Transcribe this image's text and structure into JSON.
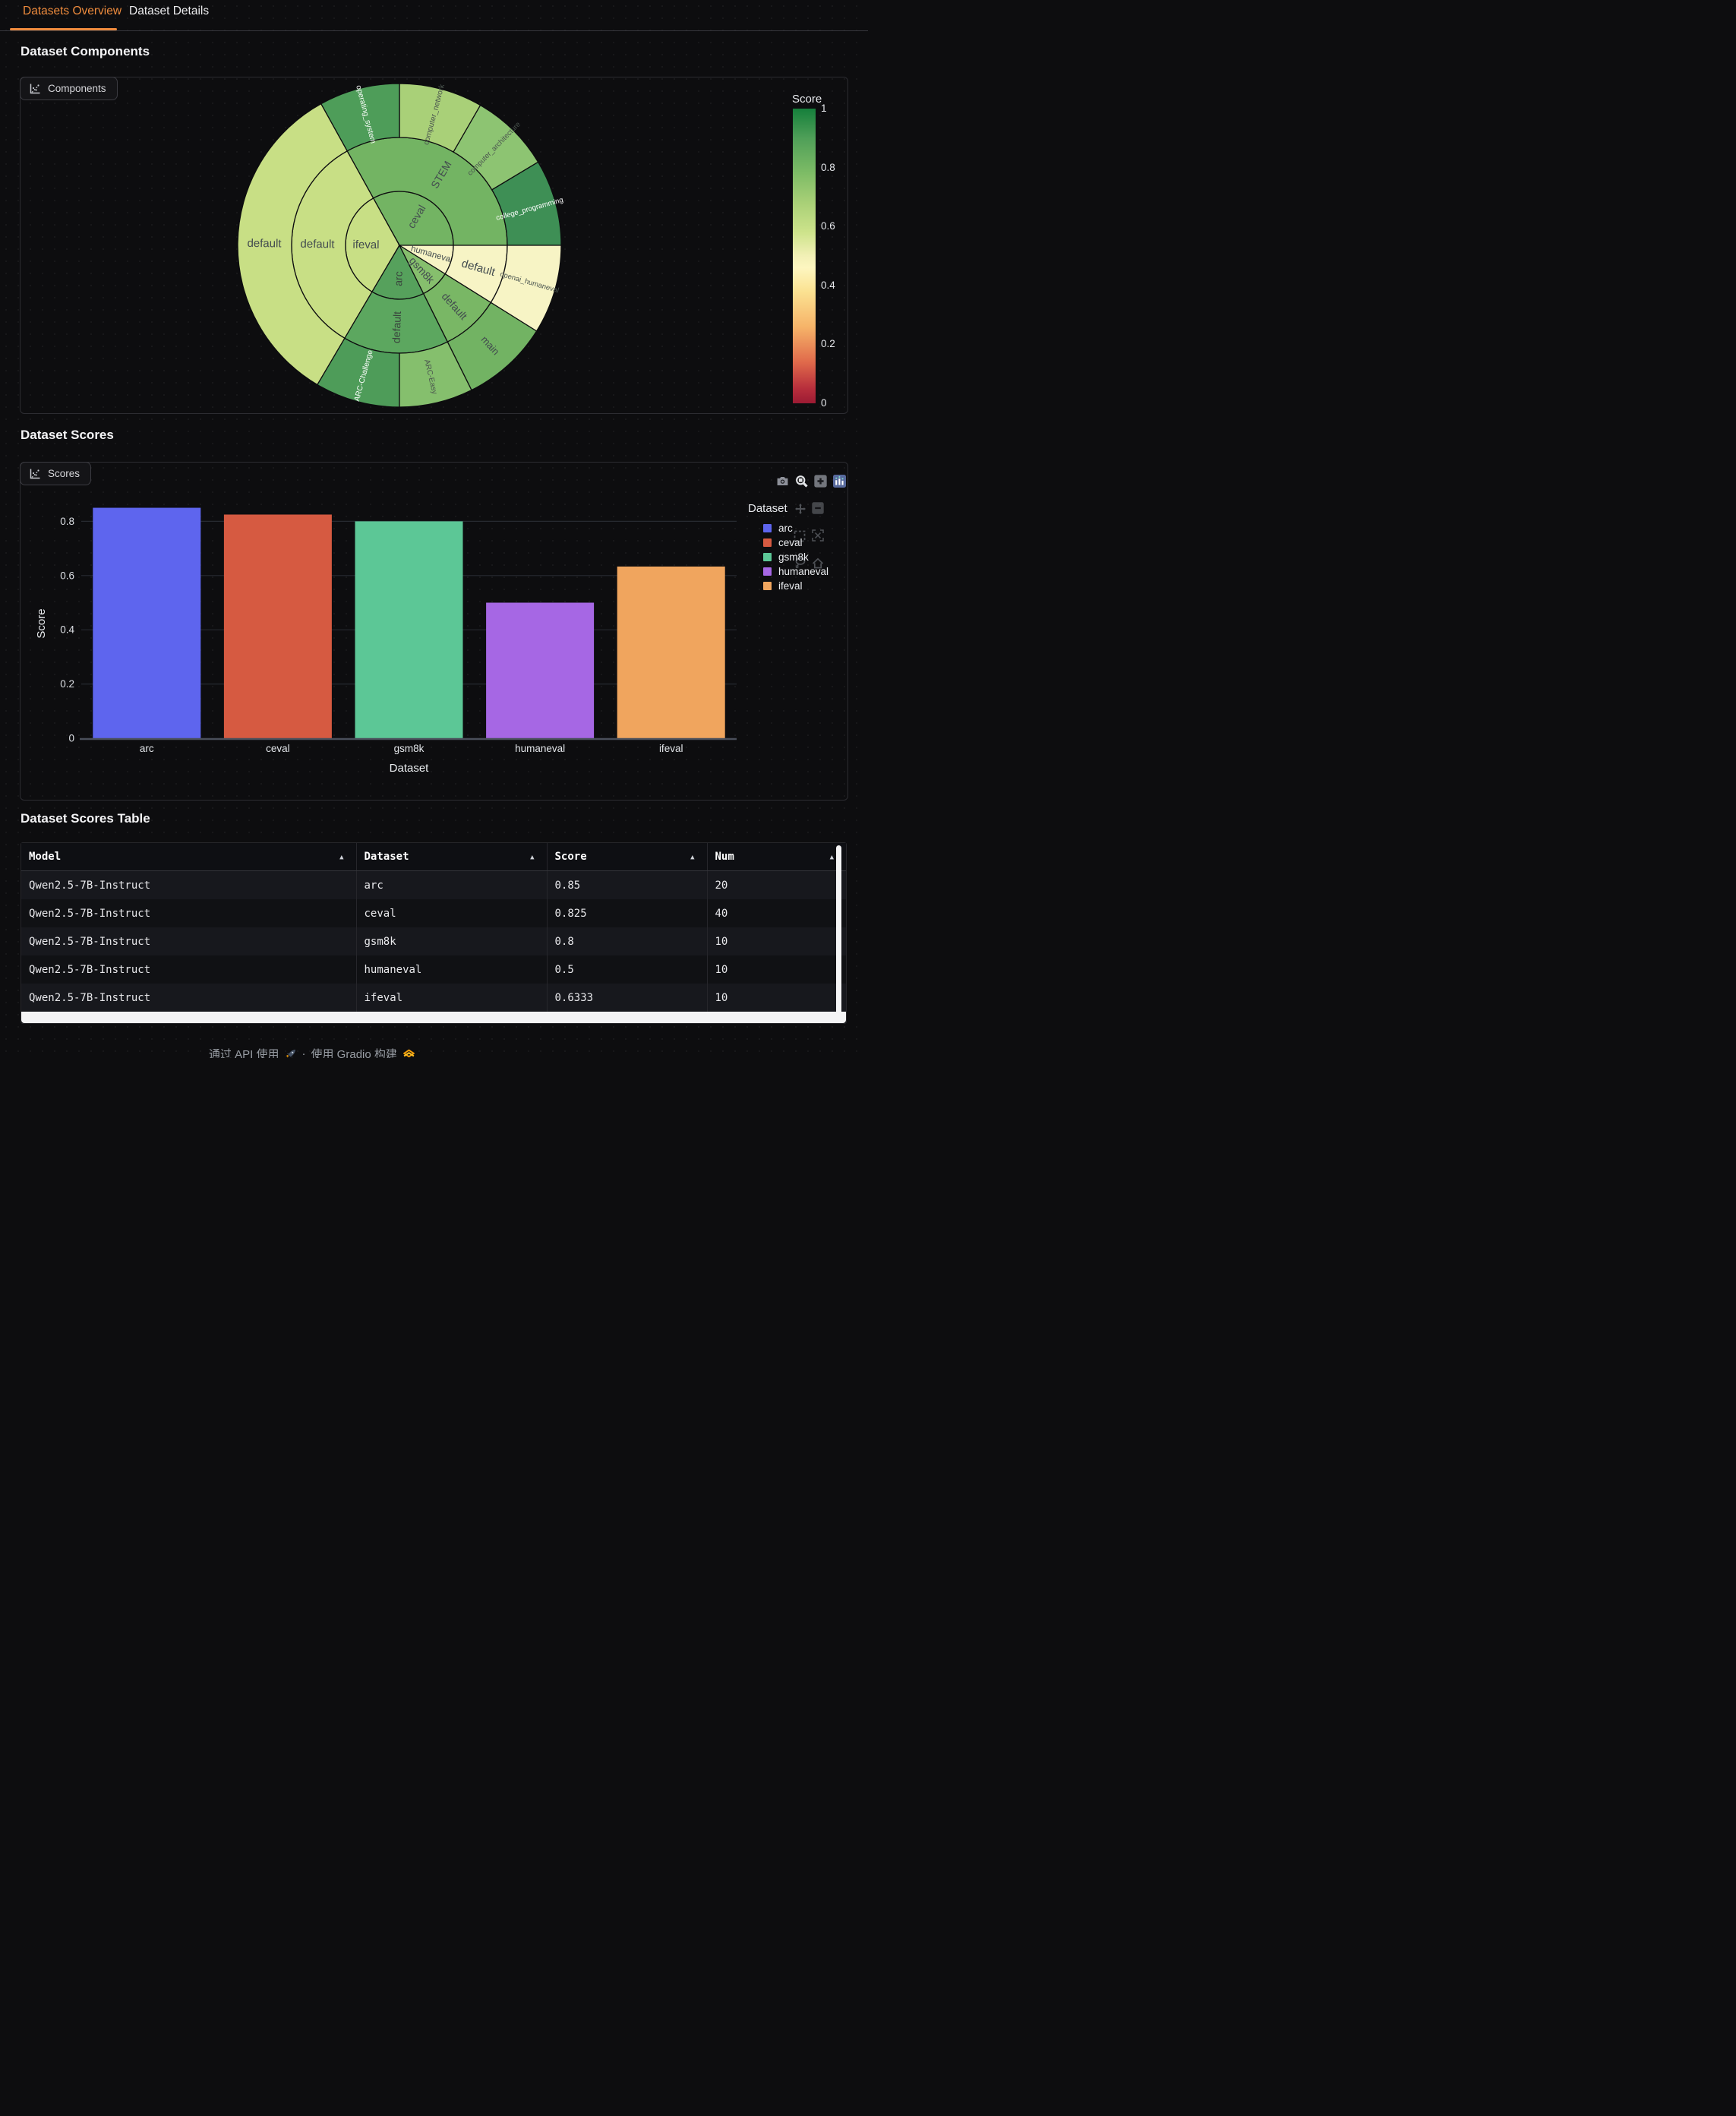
{
  "tabs": [
    {
      "label": "Datasets Overview",
      "active": true
    },
    {
      "label": "Dataset Details",
      "active": false
    }
  ],
  "sections": {
    "components": {
      "heading": "Dataset Components",
      "tab_label": "Components"
    },
    "scores": {
      "heading": "Dataset Scores",
      "tab_label": "Scores"
    },
    "table": {
      "heading": "Dataset Scores Table"
    }
  },
  "chart_data": [
    {
      "type": "sunburst",
      "description": "Dataset components sunburst, colored by Score (RdYlGn, 0=red, 1=green)",
      "colorbar": {
        "title": "Score",
        "ticks": [
          "1",
          "0.8",
          "0.6",
          "0.4",
          "0.2",
          "0"
        ],
        "range": [
          0,
          1
        ],
        "colormap": "RdYlGn"
      },
      "rings": [
        "dataset",
        "subset",
        "split"
      ],
      "segments": [
        {
          "label": "ceval",
          "ring": 0,
          "a0": 0,
          "a1": 119,
          "color": "#73b463",
          "text": "#434c4f",
          "fs": 14
        },
        {
          "label": "ifeval",
          "ring": 0,
          "a0": 119,
          "a1": 239.5,
          "color": "#c8df85",
          "text": "#434c4f",
          "fs": 15
        },
        {
          "label": "arc",
          "ring": 0,
          "a0": 239.5,
          "a1": 296.5,
          "color": "#56a15c",
          "text": "#39443d",
          "fs": 14
        },
        {
          "label": "gsm8k",
          "ring": 0,
          "a0": 296.5,
          "a1": 328,
          "color": "#86bf6d",
          "text": "#434c4f",
          "fs": 14
        },
        {
          "label": "humaneval",
          "ring": 0,
          "a0": 328,
          "a1": 360,
          "color": "#f7f4c5",
          "text": "#434c4f",
          "fs": 11.5
        },
        {
          "label": "STEM",
          "ring": 1,
          "a0": 0,
          "a1": 119,
          "color": "#73b463",
          "text": "#434c4f",
          "fs": 14
        },
        {
          "label": "default",
          "ring": 1,
          "a0": 119,
          "a1": 239.5,
          "color": "#c8df85",
          "text": "#434c4f",
          "fs": 15
        },
        {
          "label": "default",
          "ring": 1,
          "a0": 239.5,
          "a1": 296.5,
          "color": "#5ca75f",
          "text": "#39443d",
          "fs": 14
        },
        {
          "label": "default",
          "ring": 1,
          "a0": 296.5,
          "a1": 328,
          "color": "#79b765",
          "text": "#434c4f",
          "fs": 14
        },
        {
          "label": "default",
          "ring": 1,
          "a0": 328,
          "a1": 360,
          "color": "#f7f4c5",
          "text": "#434c4f",
          "fs": 15
        },
        {
          "label": "college_programming",
          "ring": 2,
          "a0": 0,
          "a1": 31,
          "color": "#3e8f55",
          "text": "#ffffff",
          "fs": 9.5
        },
        {
          "label": "computer_architecture",
          "ring": 2,
          "a0": 31,
          "a1": 60,
          "color": "#8dc472",
          "text": "#4a544f",
          "fs": 9.5
        },
        {
          "label": "computer_network",
          "ring": 2,
          "a0": 60,
          "a1": 90,
          "color": "#a9d078",
          "text": "#4a544f",
          "fs": 10
        },
        {
          "label": "operating_system",
          "ring": 2,
          "a0": 90,
          "a1": 119,
          "color": "#4e9d59",
          "text": "#ffffff",
          "fs": 10
        },
        {
          "label": "default",
          "ring": 2,
          "a0": 119,
          "a1": 239.5,
          "color": "#c8df85",
          "text": "#434c4f",
          "fs": 15
        },
        {
          "label": "ARC-Challenge",
          "ring": 2,
          "a0": 239.5,
          "a1": 270,
          "color": "#4e9c59",
          "text": "#ffffff",
          "fs": 10
        },
        {
          "label": "ARC-Easy",
          "ring": 2,
          "a0": 270,
          "a1": 296.5,
          "color": "#85bf6d",
          "text": "#4a544f",
          "fs": 10
        },
        {
          "label": "main",
          "ring": 2,
          "a0": 296.5,
          "a1": 328,
          "color": "#72b363",
          "text": "#434c4f",
          "fs": 13
        },
        {
          "label": "openai_humaneval",
          "ring": 2,
          "a0": 328,
          "a1": 360,
          "color": "#f7f4c5",
          "text": "#4a544f",
          "fs": 9.5
        }
      ]
    },
    {
      "type": "bar",
      "title": "",
      "categories": [
        "arc",
        "ceval",
        "gsm8k",
        "humaneval",
        "ifeval"
      ],
      "values": [
        0.85,
        0.825,
        0.8,
        0.5,
        0.6333
      ],
      "colors": [
        "#5e65ee",
        "#d65a41",
        "#5cc796",
        "#a667e4",
        "#f0a55e"
      ],
      "xlabel": "Dataset",
      "ylabel": "Score",
      "yticks": [
        0,
        0.2,
        0.4,
        0.6,
        0.8
      ],
      "ylim": [
        0,
        0.89
      ],
      "grid": true,
      "legend_title": "Dataset",
      "legend_position": "right"
    }
  ],
  "table": {
    "columns": [
      "Model",
      "Dataset",
      "Score",
      "Num"
    ],
    "sort_icon": "▲",
    "rows": [
      [
        "Qwen2.5-7B-Instruct",
        "arc",
        "0.85",
        "20"
      ],
      [
        "Qwen2.5-7B-Instruct",
        "ceval",
        "0.825",
        "40"
      ],
      [
        "Qwen2.5-7B-Instruct",
        "gsm8k",
        "0.8",
        "10"
      ],
      [
        "Qwen2.5-7B-Instruct",
        "humaneval",
        "0.5",
        "10"
      ],
      [
        "Qwen2.5-7B-Instruct",
        "ifeval",
        "0.6333",
        "10"
      ]
    ]
  },
  "modebar": {
    "icons": [
      "camera",
      "zoom",
      "zoom-in",
      "plotly-logo"
    ],
    "overlay_icons": [
      "pan",
      "zoom-out",
      "box-select",
      "autoscale",
      "lasso",
      "home"
    ]
  },
  "footer": {
    "use_api": "通过 API 使用",
    "separator": "·",
    "built_with": "使用 Gradio 构建"
  },
  "colors": {
    "accent_orange": "#ee8b3d",
    "page_bg": "#0d0d0f",
    "scrollbar": "#f4f4f5",
    "panel_border": "#2c2c31"
  }
}
